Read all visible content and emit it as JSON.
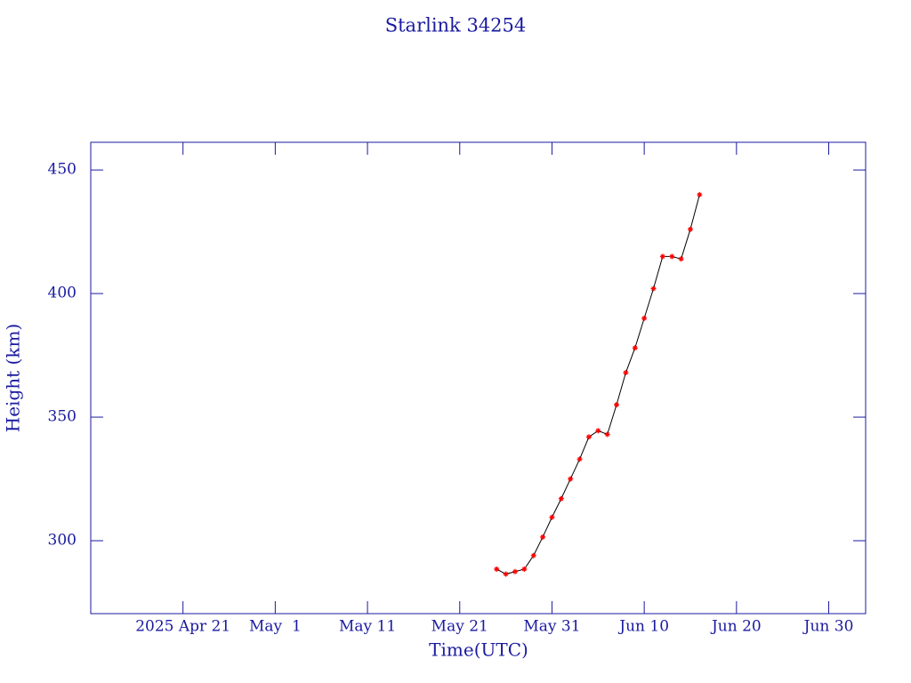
{
  "chart_data": {
    "type": "line",
    "title": "Starlink 34254",
    "x_label": "Time(UTC)",
    "y_label": "Height (km)",
    "x": [
      "2025-05-25",
      "2025-05-26",
      "2025-05-27",
      "2025-05-28",
      "2025-05-29",
      "2025-05-30",
      "2025-05-31",
      "2025-06-01",
      "2025-06-02",
      "2025-06-03",
      "2025-06-04",
      "2025-06-05",
      "2025-06-06",
      "2025-06-07",
      "2025-06-08",
      "2025-06-09",
      "2025-06-10",
      "2025-06-11",
      "2025-06-12",
      "2025-06-13",
      "2025-06-14",
      "2025-06-15",
      "2025-06-16"
    ],
    "series": [
      {
        "color": "#ff0000",
        "line_color": "#000000",
        "values": [
          288.5,
          286.5,
          287.5,
          288.5,
          294,
          301.5,
          309.5,
          317,
          325,
          333,
          342,
          344.5,
          343,
          355,
          368,
          378,
          390,
          402,
          415,
          415,
          414,
          426,
          440
        ]
      }
    ],
    "xlim": [
      "2025-04-11",
      "2025-07-04"
    ],
    "xticks": [
      {
        "value": "2025-04-21",
        "label": "2025 Apr 21"
      },
      {
        "value": "2025-05-01",
        "label": "May  1"
      },
      {
        "value": "2025-05-11",
        "label": "May 11"
      },
      {
        "value": "2025-05-21",
        "label": "May 21"
      },
      {
        "value": "2025-05-31",
        "label": "May 31"
      },
      {
        "value": "2025-06-10",
        "label": "Jun 10"
      },
      {
        "value": "2025-06-20",
        "label": "Jun 20"
      },
      {
        "value": "2025-06-30",
        "label": "Jun 30"
      }
    ],
    "ylim": [
      270.5,
      461.2
    ],
    "yticks": [
      300,
      350,
      400,
      450
    ],
    "axis_color": "#1a1aa0"
  }
}
